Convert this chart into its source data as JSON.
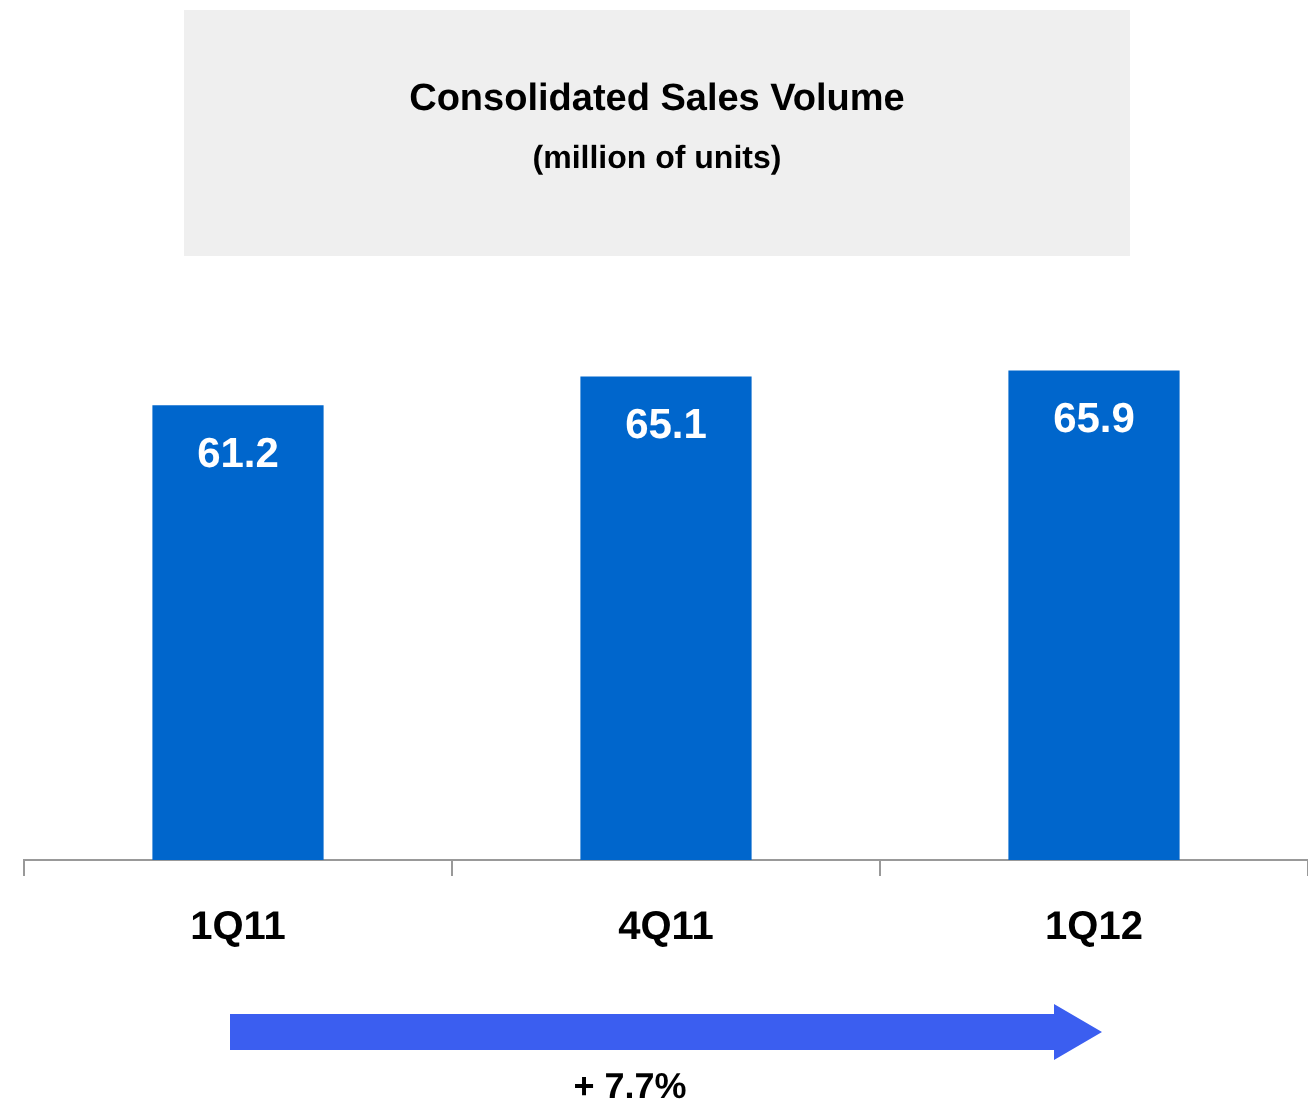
{
  "chart_data": {
    "type": "bar",
    "title": "Consolidated Sales Volume",
    "subtitle": "(million of units)",
    "categories": [
      "1Q11",
      "4Q11",
      "1Q12"
    ],
    "values": [
      61.2,
      65.1,
      65.9
    ],
    "color": "#0066cc",
    "data_labels": true,
    "grid": false,
    "legend": false,
    "annotations": [
      "+ 7.7%"
    ]
  }
}
